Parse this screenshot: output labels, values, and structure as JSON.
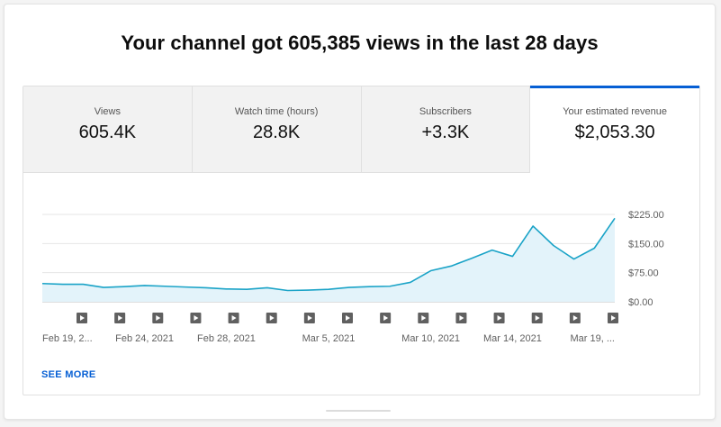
{
  "headline": "Your channel got 605,385 views in the last 28 days",
  "tabs": [
    {
      "label": "Views",
      "value": "605.4K"
    },
    {
      "label": "Watch time (hours)",
      "value": "28.8K"
    },
    {
      "label": "Subscribers",
      "value": "+3.3K"
    },
    {
      "label": "Your estimated revenue",
      "value": "$2,053.30"
    }
  ],
  "active_tab": "Your estimated revenue",
  "see_more": "SEE MORE",
  "colors": {
    "accent": "#065fd4",
    "line": "#1aa3c7",
    "fill": "#e3f3fa"
  },
  "icons": {
    "video_marker": "play-icon"
  },
  "chart_data": {
    "type": "area",
    "title": "",
    "xlabel": "",
    "ylabel": "",
    "x": [
      "Feb 19, 2021",
      "Feb 20, 2021",
      "Feb 21, 2021",
      "Feb 22, 2021",
      "Feb 23, 2021",
      "Feb 24, 2021",
      "Feb 25, 2021",
      "Feb 26, 2021",
      "Feb 27, 2021",
      "Feb 28, 2021",
      "Mar 1, 2021",
      "Mar 2, 2021",
      "Mar 3, 2021",
      "Mar 4, 2021",
      "Mar 5, 2021",
      "Mar 6, 2021",
      "Mar 7, 2021",
      "Mar 8, 2021",
      "Mar 9, 2021",
      "Mar 10, 2021",
      "Mar 11, 2021",
      "Mar 12, 2021",
      "Mar 13, 2021",
      "Mar 14, 2021",
      "Mar 15, 2021",
      "Mar 16, 2021",
      "Mar 17, 2021",
      "Mar 18, 2021",
      "Mar 19, 2021"
    ],
    "values": [
      47,
      45,
      45,
      37,
      39,
      42,
      40,
      38,
      36,
      33,
      32,
      36,
      29,
      30,
      32,
      37,
      39,
      40,
      50,
      80,
      92,
      112,
      133,
      117,
      195,
      145,
      110,
      138,
      215
    ],
    "ylim": [
      0,
      225
    ],
    "y_ticks": [
      "$225.00",
      "$150.00",
      "$75.00",
      "$0.00"
    ],
    "y_tick_values": [
      225,
      150,
      75,
      0
    ],
    "x_tick_labels": [
      "Feb 19, 2...",
      "Feb 24, 2021",
      "Feb 28, 2021",
      "Mar 5, 2021",
      "Mar 10, 2021",
      "Mar 14, 2021",
      "Mar 19, ..."
    ],
    "x_tick_indices": [
      0,
      5,
      9,
      14,
      19,
      23,
      28
    ],
    "video_markers": 15,
    "grid": true,
    "legend": "none"
  }
}
